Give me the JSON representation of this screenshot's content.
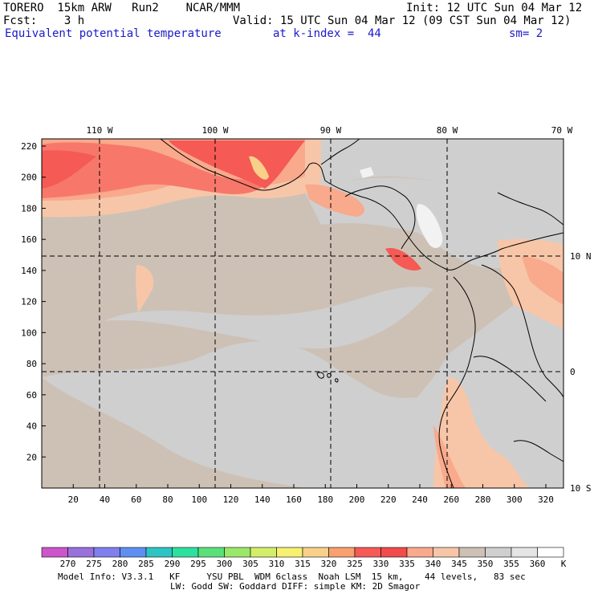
{
  "header": {
    "model": "TORERO  15km ARW   Run2    NCAR/MMM",
    "init": "Init: 12 UTC Sun 04 Mar 12",
    "fcst": "Fcst:    3 h",
    "valid": "Valid: 15 UTC Sun 04 Mar 12 (09 CST Sun 04 Mar 12)",
    "field": "Equivalent potential temperature",
    "level": "at k-index =  44",
    "smooth": "sm= 2"
  },
  "map": {
    "lon_labels": [
      "110 W",
      "100 W",
      "90 W",
      "80 W",
      "70 W"
    ],
    "lat_labels": [
      "10 N",
      "0",
      "10 S"
    ],
    "y_ticks": [
      "20",
      "40",
      "60",
      "80",
      "100",
      "120",
      "140",
      "160",
      "180",
      "200",
      "220"
    ],
    "x_ticks": [
      "20",
      "40",
      "60",
      "80",
      "100",
      "120",
      "140",
      "160",
      "180",
      "200",
      "220",
      "240",
      "260",
      "280",
      "300",
      "320"
    ],
    "colors": {
      "background": "#cdc1b6",
      "cool": "#cfcfcf",
      "warm1": "#f7c6a8",
      "warm2": "#f9a98c",
      "warm3": "#f7786a",
      "warm4": "#f55a55",
      "hot": "#f8d08a",
      "white": "#f2f2f2"
    }
  },
  "colorbar": {
    "levels": [
      "270",
      "275",
      "280",
      "285",
      "290",
      "295",
      "300",
      "305",
      "310",
      "315",
      "320",
      "325",
      "330",
      "335",
      "340",
      "345",
      "350",
      "355",
      "360"
    ],
    "unit": "K",
    "colors": [
      "#cc55cc",
      "#9a70dd",
      "#7f7fee",
      "#5f8ff2",
      "#2ec4c4",
      "#2ee0a0",
      "#5ae07a",
      "#9ae86a",
      "#d4ee6a",
      "#f8f070",
      "#f8d08a",
      "#f8a070",
      "#f55a55",
      "#f14b4b",
      "#f9a98c",
      "#f7c6a8",
      "#cdc1b6",
      "#cfcfcf",
      "#e5e5e5",
      "#ffffff"
    ]
  },
  "footer": {
    "line1": "Model Info: V3.3.1   KF     YSU PBL  WDM 6class  Noah LSM  15 km,    44 levels,   83 sec",
    "line2": "LW: Godd SW: Goddard DIFF: simple KM: 2D Smagor"
  }
}
